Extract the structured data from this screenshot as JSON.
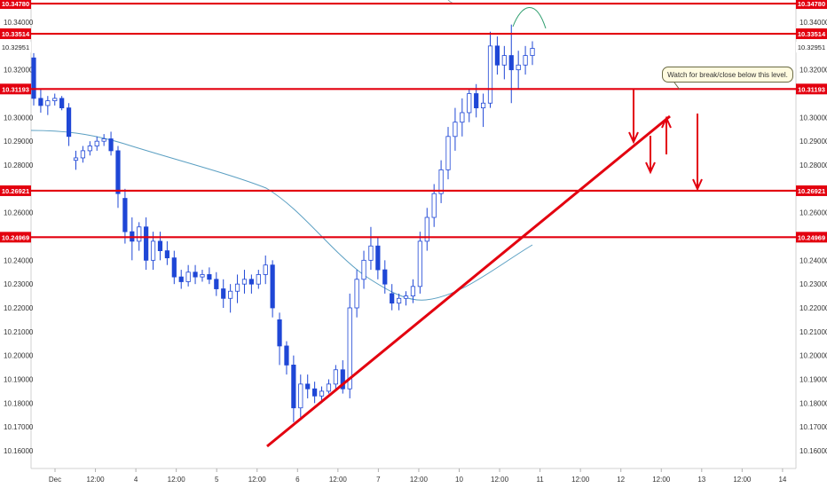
{
  "chart_data": {
    "type": "candlestick",
    "instrument_price_scale": "10.16 - 10.35",
    "ylim": [
      10.155,
      10.349
    ],
    "y_ticks": [
      "10.34000",
      "10.32000",
      "10.30000",
      "10.29000",
      "10.28000",
      "10.26000",
      "10.24000",
      "10.23000",
      "10.22000",
      "10.21000",
      "10.20000",
      "10.19000",
      "10.18000",
      "10.17000",
      "10.16000"
    ],
    "y_tick_values": [
      10.34,
      10.32,
      10.3,
      10.29,
      10.28,
      10.26,
      10.24,
      10.23,
      10.22,
      10.21,
      10.2,
      10.19,
      10.18,
      10.17,
      10.16
    ],
    "x_ticks": [
      "Dec",
      "12:00",
      "4",
      "12:00",
      "5",
      "12:00",
      "6",
      "12:00",
      "7",
      "12:00",
      "10",
      "12:00",
      "11",
      "12:00",
      "12",
      "12:00",
      "13",
      "12:00",
      "14"
    ],
    "levels": [
      {
        "label": "10.34780",
        "value": 10.3478
      },
      {
        "label": "10.33514",
        "value": 10.33514
      },
      {
        "label": "10.31193",
        "value": 10.31193
      },
      {
        "label": "10.26921",
        "value": 10.26921
      },
      {
        "label": "10.24969",
        "value": 10.24969
      }
    ],
    "current_price": {
      "label": "10.32951",
      "value": 10.32951
    },
    "annotation": "Watch for break/close below this level.",
    "candles_ohlc": [
      [
        10.325,
        10.327,
        10.305,
        10.308
      ],
      [
        10.308,
        10.312,
        10.302,
        10.305
      ],
      [
        10.305,
        10.309,
        10.301,
        10.307
      ],
      [
        10.307,
        10.31,
        10.305,
        10.308
      ],
      [
        10.308,
        10.309,
        10.303,
        10.304
      ],
      [
        10.304,
        10.306,
        10.288,
        10.292
      ],
      [
        10.282,
        10.286,
        10.278,
        10.283
      ],
      [
        10.283,
        10.288,
        10.281,
        10.286
      ],
      [
        10.286,
        10.29,
        10.284,
        10.288
      ],
      [
        10.288,
        10.292,
        10.286,
        10.29
      ],
      [
        10.29,
        10.293,
        10.288,
        10.291
      ],
      [
        10.291,
        10.294,
        10.284,
        10.286
      ],
      [
        10.286,
        10.288,
        10.262,
        10.268
      ],
      [
        10.266,
        10.27,
        10.247,
        10.252
      ],
      [
        10.252,
        10.258,
        10.24,
        10.248
      ],
      [
        10.248,
        10.256,
        10.244,
        10.254
      ],
      [
        10.254,
        10.258,
        10.236,
        10.24
      ],
      [
        10.24,
        10.252,
        10.236,
        10.248
      ],
      [
        10.248,
        10.252,
        10.24,
        10.244
      ],
      [
        10.244,
        10.248,
        10.238,
        10.241
      ],
      [
        10.241,
        10.244,
        10.23,
        10.233
      ],
      [
        10.233,
        10.236,
        10.228,
        10.231
      ],
      [
        10.231,
        10.238,
        10.229,
        10.235
      ],
      [
        10.235,
        10.238,
        10.23,
        10.233
      ],
      [
        10.233,
        10.236,
        10.231,
        10.234
      ],
      [
        10.234,
        10.237,
        10.23,
        10.232
      ],
      [
        10.232,
        10.235,
        10.225,
        10.228
      ],
      [
        10.228,
        10.232,
        10.22,
        10.224
      ],
      [
        10.224,
        10.23,
        10.218,
        10.227
      ],
      [
        10.227,
        10.234,
        10.222,
        10.23
      ],
      [
        10.23,
        10.236,
        10.226,
        10.232
      ],
      [
        10.232,
        10.234,
        10.226,
        10.23
      ],
      [
        10.23,
        10.236,
        10.228,
        10.234
      ],
      [
        10.234,
        10.242,
        10.23,
        10.238
      ],
      [
        10.238,
        10.24,
        10.216,
        10.22
      ],
      [
        10.215,
        10.218,
        10.196,
        10.204
      ],
      [
        10.204,
        10.206,
        10.192,
        10.196
      ],
      [
        10.196,
        10.2,
        10.172,
        10.178
      ],
      [
        10.178,
        10.192,
        10.174,
        10.188
      ],
      [
        10.188,
        10.192,
        10.182,
        10.186
      ],
      [
        10.186,
        10.189,
        10.18,
        10.183
      ],
      [
        10.183,
        10.187,
        10.18,
        10.185
      ],
      [
        10.185,
        10.19,
        10.184,
        10.188
      ],
      [
        10.188,
        10.196,
        10.186,
        10.194
      ],
      [
        10.194,
        10.198,
        10.184,
        10.186
      ],
      [
        10.186,
        10.226,
        10.182,
        10.22
      ],
      [
        10.22,
        10.236,
        10.216,
        10.232
      ],
      [
        10.232,
        10.244,
        10.228,
        10.24
      ],
      [
        10.24,
        10.254,
        10.236,
        10.246
      ],
      [
        10.246,
        10.25,
        10.232,
        10.236
      ],
      [
        10.236,
        10.24,
        10.226,
        10.23
      ],
      [
        10.226,
        10.23,
        10.219,
        10.222
      ],
      [
        10.222,
        10.226,
        10.219,
        10.224
      ],
      [
        10.224,
        10.227,
        10.221,
        10.225
      ],
      [
        10.225,
        10.232,
        10.222,
        10.229
      ],
      [
        10.229,
        10.252,
        10.226,
        10.248
      ],
      [
        10.248,
        10.262,
        10.244,
        10.258
      ],
      [
        10.258,
        10.272,
        10.254,
        10.268
      ],
      [
        10.268,
        10.282,
        10.264,
        10.278
      ],
      [
        10.278,
        10.296,
        10.274,
        10.292
      ],
      [
        10.292,
        10.304,
        10.286,
        10.298
      ],
      [
        10.298,
        10.308,
        10.292,
        10.302
      ],
      [
        10.302,
        10.312,
        10.298,
        10.31
      ],
      [
        10.31,
        10.314,
        10.3,
        10.304
      ],
      [
        10.304,
        10.31,
        10.296,
        10.306
      ],
      [
        10.306,
        10.336,
        10.304,
        10.33
      ],
      [
        10.33,
        10.334,
        10.318,
        10.322
      ],
      [
        10.322,
        10.33,
        10.316,
        10.326
      ],
      [
        10.326,
        10.339,
        10.306,
        10.32
      ],
      [
        10.32,
        10.328,
        10.312,
        10.322
      ],
      [
        10.322,
        10.33,
        10.318,
        10.326
      ],
      [
        10.326,
        10.332,
        10.322,
        10.329
      ]
    ],
    "moving_average": "light blue curve declining from ~10.295 to ~10.222, then rising toward ~10.24",
    "trendline": {
      "from": [
        10.1625,
        "Dec 6 start"
      ],
      "to": [
        10.301,
        "Dec 12 12:00"
      ]
    },
    "colors": {
      "level_line": "#e3000f",
      "candle": "#1f47d6",
      "moving_average": "#5a9fc2",
      "arc": "#2e9e6e",
      "label_text": "#ffffff"
    }
  }
}
